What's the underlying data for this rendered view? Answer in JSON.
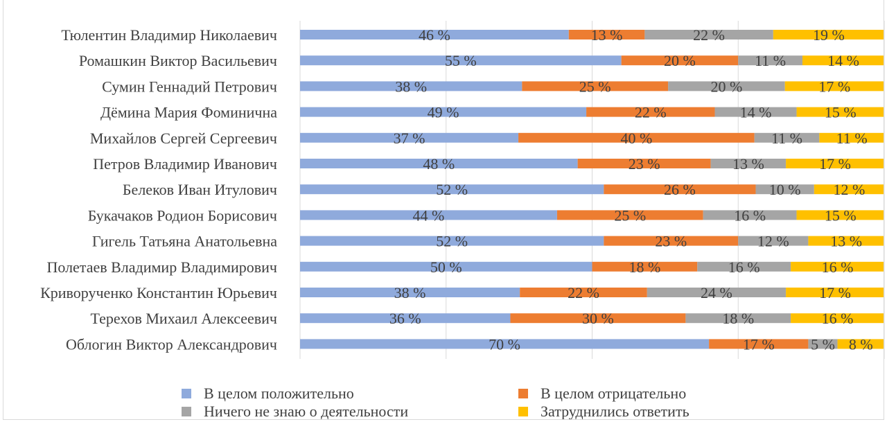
{
  "chart_data": {
    "type": "bar",
    "stacked": true,
    "orientation": "horizontal",
    "percent_scale": true,
    "grid": true,
    "legend_position": "bottom",
    "value_suffix": " %",
    "categories": [
      "Тюлентин Владимир Николаевич",
      "Ромашкин Виктор Васильевич",
      "Сумин Геннадий Петрович",
      "Дёмина Мария Фоминична",
      "Михайлов Сергей Сергеевич",
      "Петров Владимир Иванович",
      "Белеков Иван Итулович",
      "Букачаков Родион Борисович",
      "Гигель Татьяна Анатольевна",
      "Полетаев Владимир Владимирович",
      "Криворученко Константин Юрьевич",
      "Терехов Михаил Алексеевич",
      "Облогин Виктор Александрович"
    ],
    "series": [
      {
        "name": "В целом положительно",
        "color": "#8faadc",
        "values": [
          46,
          55,
          38,
          49,
          37,
          48,
          52,
          44,
          52,
          50,
          38,
          36,
          70
        ]
      },
      {
        "name": "В целом отрицательно",
        "color": "#ed7d31",
        "values": [
          13,
          20,
          25,
          22,
          40,
          23,
          26,
          25,
          23,
          18,
          22,
          30,
          17
        ]
      },
      {
        "name": "Ничего не знаю о деятельности",
        "color": "#a5a5a5",
        "values": [
          22,
          11,
          20,
          14,
          11,
          13,
          10,
          16,
          12,
          16,
          24,
          18,
          5
        ]
      },
      {
        "name": "Затруднились ответить",
        "color": "#ffc000",
        "values": [
          19,
          14,
          17,
          15,
          11,
          17,
          12,
          15,
          13,
          16,
          17,
          16,
          8
        ]
      }
    ]
  }
}
